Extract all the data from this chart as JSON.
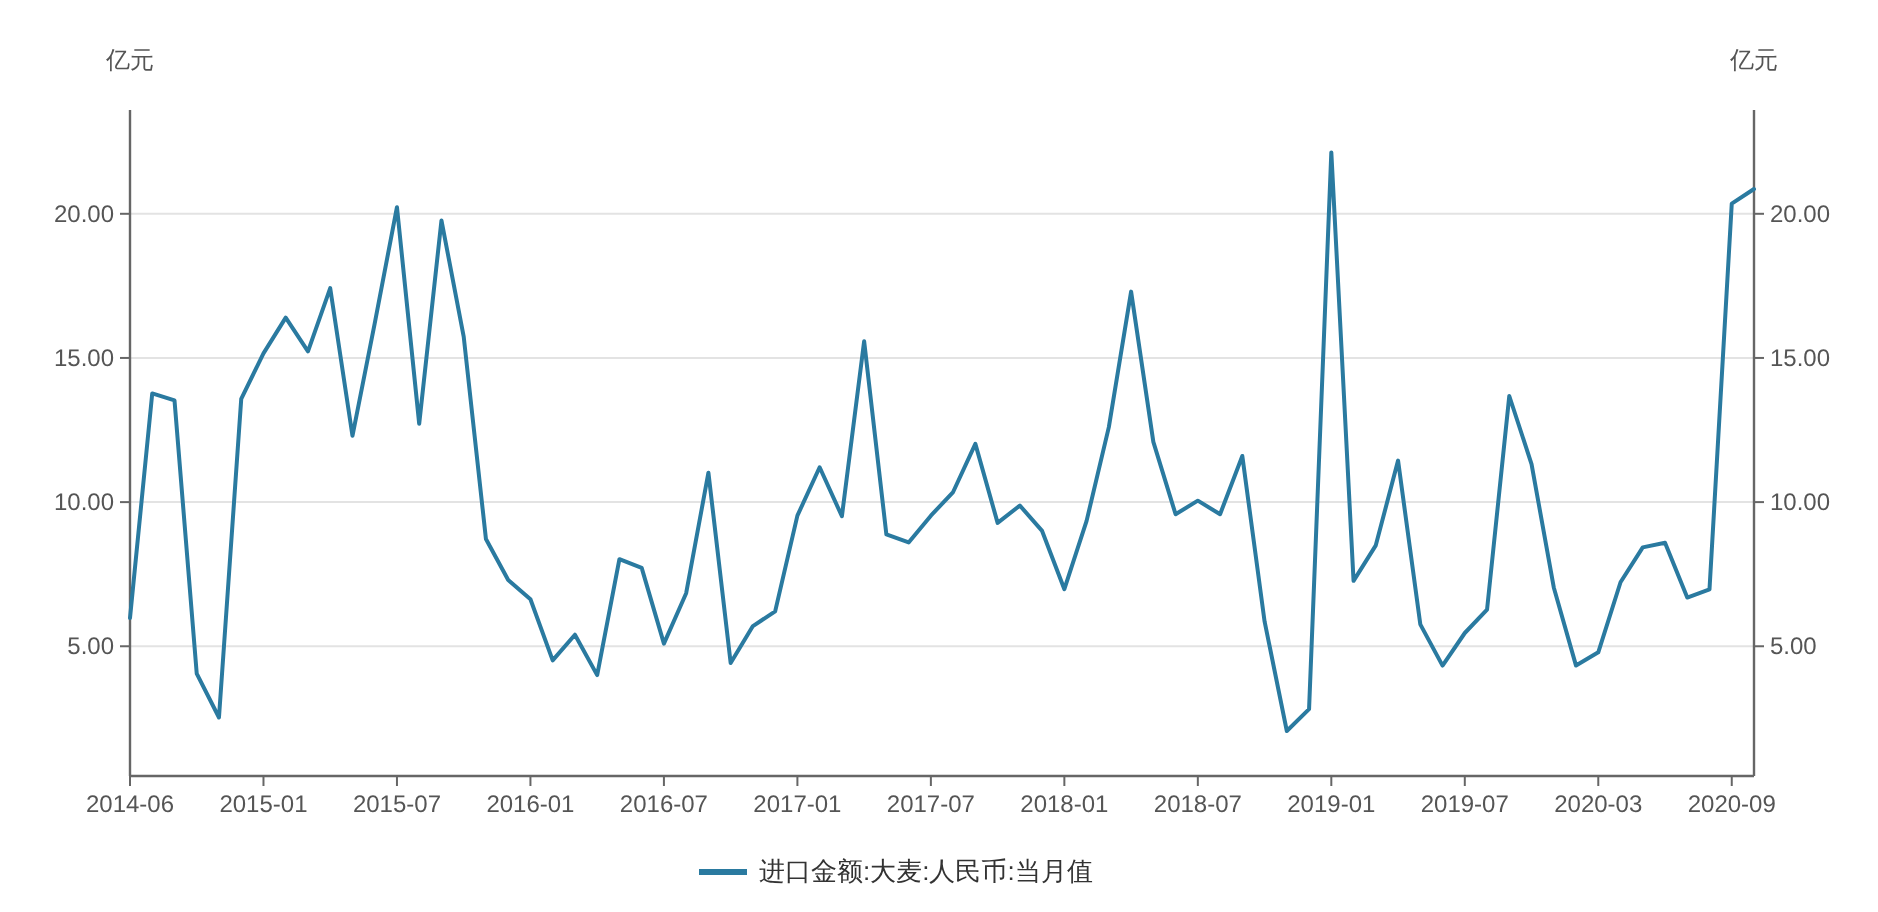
{
  "chart_data": {
    "type": "line",
    "categories": [
      "2014-06",
      null,
      null,
      null,
      null,
      null,
      "2015-01",
      null,
      null,
      null,
      null,
      null,
      "2015-07",
      null,
      null,
      null,
      null,
      null,
      "2016-01",
      null,
      null,
      null,
      null,
      null,
      "2016-07",
      null,
      null,
      null,
      null,
      null,
      "2017-01",
      null,
      null,
      null,
      null,
      null,
      "2017-07",
      null,
      null,
      null,
      null,
      null,
      "2018-01",
      null,
      null,
      null,
      null,
      null,
      "2018-07",
      null,
      null,
      null,
      null,
      null,
      "2019-01",
      null,
      null,
      null,
      null,
      null,
      "2019-07",
      null,
      null,
      null,
      null,
      null,
      "2020-03",
      null,
      null,
      null,
      null,
      null,
      "2020-09",
      null
    ],
    "series": [
      {
        "name": "进口金额:大麦:人民币:当月值",
        "color": "#2a7aa0",
        "values": [
          5.98,
          13.77,
          13.53,
          4.05,
          2.53,
          13.58,
          15.16,
          16.4,
          15.23,
          17.42,
          12.3,
          16.2,
          20.23,
          12.72,
          19.77,
          15.74,
          8.72,
          7.3,
          6.63,
          4.51,
          5.4,
          4.0,
          8.02,
          7.72,
          5.09,
          6.84,
          11.02,
          4.42,
          5.7,
          6.21,
          9.53,
          11.21,
          9.51,
          15.58,
          8.88,
          8.6,
          9.53,
          10.35,
          12.02,
          9.28,
          9.88,
          9.0,
          6.98,
          9.35,
          12.6,
          17.3,
          12.09,
          9.58,
          10.05,
          9.58,
          11.6,
          5.86,
          2.06,
          2.82,
          22.13,
          7.27,
          8.5,
          11.44,
          5.76,
          4.33,
          5.46,
          6.27,
          13.68,
          11.32,
          7.04,
          4.33,
          4.79,
          7.22,
          8.43,
          8.59,
          6.69,
          6.97,
          20.35,
          20.86
        ]
      }
    ],
    "ylabel": "亿元",
    "y2label": "亿元",
    "ylim": [
      0.5,
      23.6
    ],
    "yticks": [
      {
        "value": 5,
        "label": "5.00"
      },
      {
        "value": 10,
        "label": "10.00"
      },
      {
        "value": 15,
        "label": "15.00"
      },
      {
        "value": 20,
        "label": "20.00"
      }
    ],
    "y2lim": [
      0.5,
      23.6
    ],
    "y2ticks": [
      {
        "value": 5,
        "label": "5.00"
      },
      {
        "value": 10,
        "label": "10.00"
      },
      {
        "value": 15,
        "label": "15.00"
      },
      {
        "value": 20,
        "label": "20.00"
      }
    ],
    "grid": "y",
    "legend": "bottom",
    "marker": "none",
    "line_style": "solid"
  }
}
